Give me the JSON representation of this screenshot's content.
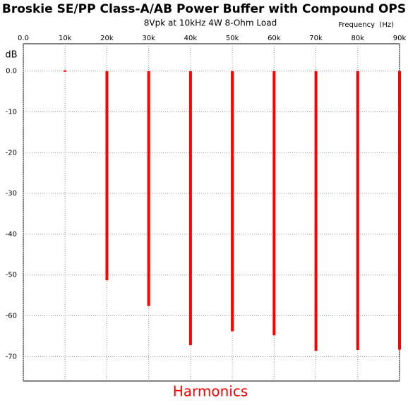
{
  "chart_data": {
    "type": "bar",
    "title": "Broskie SE/PP Class-A/AB Power Buffer with Compound OPS",
    "subtitle": "8Vpk at 10kHz 4W 8-Ohm Load",
    "xlabel": "Frequency  (Hz)",
    "ylabel": "dB",
    "bottom_label": "Harmonics",
    "x": [
      10000,
      20000,
      30000,
      40000,
      50000,
      60000,
      70000,
      80000,
      90000
    ],
    "values": [
      0,
      -51.3,
      -57.6,
      -67.2,
      -63.8,
      -64.8,
      -68.6,
      -68.4,
      -68.3
    ],
    "color": "#ff0000",
    "xlim": [
      0,
      90000
    ],
    "xticks": [
      {
        "value": 0,
        "label": "0.0"
      },
      {
        "value": 10000,
        "label": "10k"
      },
      {
        "value": 20000,
        "label": "20k"
      },
      {
        "value": 30000,
        "label": "30k"
      },
      {
        "value": 40000,
        "label": "40k"
      },
      {
        "value": 50000,
        "label": "50k"
      },
      {
        "value": 60000,
        "label": "60k"
      },
      {
        "value": 70000,
        "label": "70k"
      },
      {
        "value": 80000,
        "label": "80k"
      },
      {
        "value": 90000,
        "label": "90k"
      }
    ],
    "ylim": [
      -76,
      6.7
    ],
    "yticks": [
      {
        "value": 0,
        "label": "0.0"
      },
      -10,
      -20,
      -30,
      -40,
      -50,
      -60,
      -70
    ],
    "grid": true
  }
}
